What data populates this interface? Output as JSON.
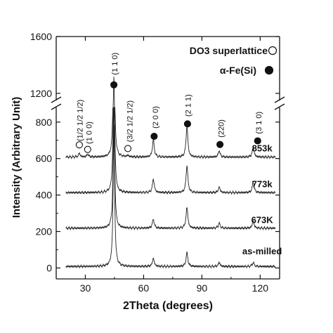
{
  "chart_data": {
    "type": "line",
    "title": "",
    "xlabel": "2Theta (degrees)",
    "ylabel": "Intensity (Arbitrary Unit)",
    "xlim": [
      15,
      130
    ],
    "ylim_lower": [
      -60,
      880
    ],
    "ylim_upper": [
      1150,
      1600
    ],
    "axis_break": [
      880,
      1150
    ],
    "x_ticks": [
      30,
      60,
      90,
      120
    ],
    "x_tick_labels": [
      "30",
      "60",
      "90",
      "120"
    ],
    "y_ticks": [
      0,
      200,
      400,
      600,
      800,
      1200,
      1600
    ],
    "y_tick_labels": [
      "0",
      "200",
      "400",
      "600",
      "800",
      "1200",
      "1600"
    ],
    "grid": false,
    "series": [
      {
        "name": "as-milled",
        "offset": 0,
        "label_at": [
          121,
          75
        ],
        "peaks": [
          [
            44.7,
            780
          ],
          [
            65.0,
            45
          ],
          [
            82.3,
            75
          ],
          [
            98.9,
            22
          ],
          [
            116.4,
            22
          ]
        ]
      },
      {
        "name": "673K",
        "offset": 210,
        "label_at": [
          121,
          247
        ],
        "peaks": [
          [
            44.7,
            700
          ],
          [
            65.0,
            50
          ],
          [
            82.3,
            115
          ],
          [
            98.9,
            28
          ],
          [
            116.4,
            38
          ]
        ]
      },
      {
        "name": "773k",
        "offset": 405,
        "label_at": [
          121,
          442
        ],
        "peaks": [
          [
            44.7,
            730
          ],
          [
            65.0,
            75
          ],
          [
            82.3,
            150
          ],
          [
            98.9,
            30
          ],
          [
            116.4,
            60
          ]
        ]
      },
      {
        "name": "853k",
        "offset": 600,
        "label_at": [
          121,
          640
        ],
        "peaks": [
          [
            26.9,
            20
          ],
          [
            31.2,
            15
          ],
          [
            44.7,
            720
          ],
          [
            51.9,
            8
          ],
          [
            65.0,
            95
          ],
          [
            82.3,
            170
          ],
          [
            98.9,
            35
          ],
          [
            116.4,
            55
          ]
        ]
      }
    ],
    "annotations": [
      {
        "text": "(1/2 1/2 1/2)",
        "x": 28.5,
        "y": 695,
        "marker": "open",
        "mx": 26.9,
        "my": 675
      },
      {
        "text": "(1 0 0)",
        "x": 33.3,
        "y": 680,
        "marker": "open",
        "mx": 31.2,
        "my": 650
      },
      {
        "text": "(1 1 0)",
        "x": 46.5,
        "y": 1330,
        "marker": "filled",
        "mx": 44.7,
        "my": 1260
      },
      {
        "text": "(3/2 1/2 1/2)",
        "x": 54.3,
        "y": 690,
        "marker": "open",
        "mx": 51.9,
        "my": 655
      },
      {
        "text": "(2 0 0)",
        "x": 67.4,
        "y": 765,
        "marker": "filled",
        "mx": 65.4,
        "my": 722
      },
      {
        "text": "(2 1 1)",
        "x": 84.3,
        "y": 830,
        "marker": "filled",
        "mx": 82.6,
        "my": 790
      },
      {
        "text": "(220)",
        "x": 101.3,
        "y": 715,
        "marker": "filled",
        "mx": 99.3,
        "my": 677
      },
      {
        "text": "(3 1 0)",
        "x": 120.6,
        "y": 735,
        "marker": "filled",
        "mx": 118.7,
        "my": 697
      }
    ],
    "legend": [
      {
        "text": "DO3 superlattice",
        "marker": "open"
      },
      {
        "text": "α-Fe(Si)",
        "marker": "filled"
      }
    ],
    "legend_placement": "top-right"
  }
}
